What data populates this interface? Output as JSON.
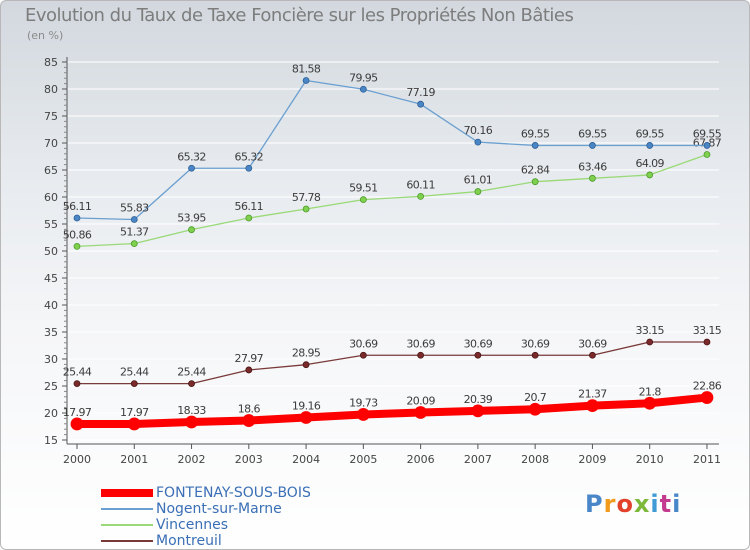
{
  "title": "Evolution du Taux de Taxe Foncière sur les Propriétés Non Bâties",
  "unit_label": "(en %)",
  "logo_text": "Proxiti",
  "chart_data": {
    "type": "line",
    "title": "Evolution du Taux de Taxe Foncière sur les Propriétés Non Bâties",
    "ylabel": "(en %)",
    "xlabel": "",
    "ylim": [
      15,
      85
    ],
    "yticks": [
      15,
      20,
      25,
      30,
      35,
      40,
      45,
      50,
      55,
      60,
      65,
      70,
      75,
      80,
      85
    ],
    "categories": [
      "2000",
      "2001",
      "2002",
      "2003",
      "2004",
      "2005",
      "2006",
      "2007",
      "2008",
      "2009",
      "2010",
      "2011"
    ],
    "legend_position": "bottom-left",
    "series": [
      {
        "name": "FONTENAY-SOUS-BOIS",
        "color": "#ff0000",
        "values": [
          17.97,
          17.97,
          18.33,
          18.6,
          19.16,
          19.73,
          20.09,
          20.39,
          20.7,
          21.37,
          21.8,
          22.86
        ],
        "labels": [
          "17.97",
          "17.97",
          "18.33",
          "18.6",
          "19.16",
          "19.73",
          "20.09",
          "20.39",
          "20.7",
          "21.37",
          "21.8",
          "22.86"
        ]
      },
      {
        "name": "Nogent-sur-Marne",
        "color": "#6a9fd0",
        "values": [
          56.11,
          55.83,
          65.32,
          65.32,
          81.58,
          79.95,
          77.19,
          70.16,
          69.55,
          69.55,
          69.55,
          69.55
        ],
        "labels": [
          "56.11",
          "55.83",
          "65.32",
          "65.32",
          "81.58",
          "79.95",
          "77.19",
          "70.16",
          "69.55",
          "69.55",
          "69.55",
          "69.55"
        ]
      },
      {
        "name": "Vincennes",
        "color": "#99d977",
        "values": [
          50.86,
          51.37,
          53.95,
          56.11,
          57.78,
          59.51,
          60.11,
          61.01,
          62.84,
          63.46,
          64.09,
          67.87
        ],
        "labels": [
          "50.86",
          "51.37",
          "53.95",
          "56.11",
          "57.78",
          "59.51",
          "60.11",
          "61.01",
          "62.84",
          "63.46",
          "64.09",
          "67.87"
        ]
      },
      {
        "name": "Montreuil",
        "color": "#7a3a3a",
        "values": [
          25.44,
          25.44,
          25.44,
          27.97,
          28.95,
          30.69,
          30.69,
          30.69,
          30.69,
          30.69,
          33.15,
          33.15
        ],
        "labels": [
          "25.44",
          "25.44",
          "25.44",
          "27.97",
          "28.95",
          "30.69",
          "30.69",
          "30.69",
          "30.69",
          "30.69",
          "33.15",
          "33.15"
        ]
      }
    ]
  }
}
